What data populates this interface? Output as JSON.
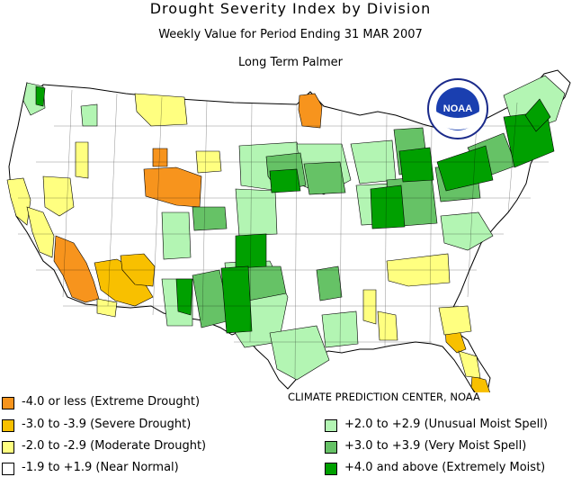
{
  "title": "Drought Severity Index by Division",
  "subtitle": "Weekly Value for Period Ending 31 MAR 2007",
  "index_name": "Long Term Palmer",
  "logo_text": "NOAA",
  "credit": "CLIMATE PREDICTION CENTER, NOAA",
  "colors": {
    "extreme_drought": "#f7941d",
    "severe_drought": "#f8c000",
    "moderate_drought": "#ffff80",
    "near_normal": "#ffffff",
    "unusual_moist": "#b3f5b3",
    "very_moist": "#66c266",
    "extremely_moist": "#00a000"
  },
  "legend": {
    "left": [
      {
        "label": "-4.0 or less (Extreme Drought)",
        "color": "#f7941d"
      },
      {
        "label": "-3.0 to -3.9 (Severe Drought)",
        "color": "#f8c000"
      },
      {
        "label": "-2.0 to -2.9 (Moderate Drought)",
        "color": "#ffff80"
      },
      {
        "label": "-1.9 to +1.9 (Near Normal)",
        "color": "#ffffff"
      }
    ],
    "right": [
      {
        "label": "+2.0 to +2.9 (Unusual Moist Spell)",
        "color": "#b3f5b3"
      },
      {
        "label": "+3.0 to +3.9 (Very Moist Spell)",
        "color": "#66c266"
      },
      {
        "label": "+4.0 and above (Extremely Moist)",
        "color": "#00a000"
      }
    ]
  }
}
